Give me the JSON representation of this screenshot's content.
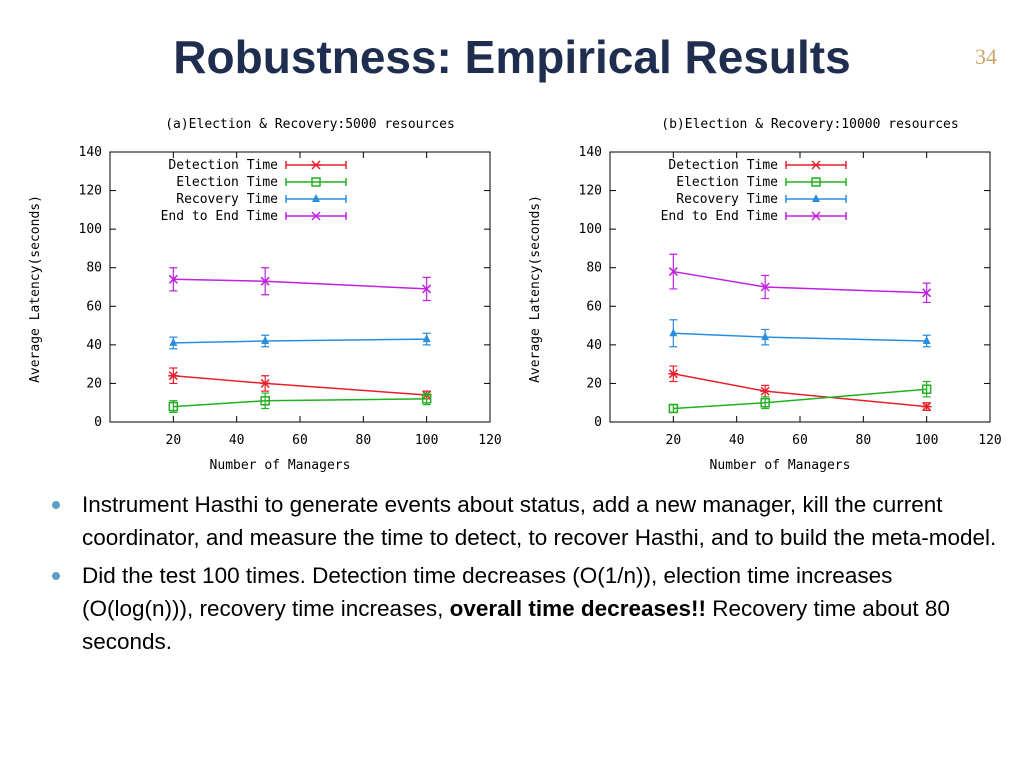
{
  "slide": {
    "title": "Robustness: Empirical Results",
    "number": "34"
  },
  "bullets": [
    {
      "text": "Instrument Hasthi to generate events about status, add a new manager, kill the current coordinator, and measure the time to detect, to recover Hasthi, and to build the meta-model."
    },
    {
      "text": "Did the test 100 times. Detection time decreases (O(1/n)), election time increases (O(log(n))), recovery time increases,",
      "bold": "overall time decreases!!",
      "tail": "Recovery time about 80 seconds."
    }
  ],
  "chart_data": [
    {
      "type": "line",
      "title": "(a)Election & Recovery:5000 resources",
      "xlabel": "Number of Managers",
      "ylabel": "Average Latency(seconds)",
      "xlim": [
        0,
        120
      ],
      "ylim": [
        0,
        140
      ],
      "xticks": [
        "20",
        "40",
        "60",
        "80",
        "100",
        "120"
      ],
      "yticks": [
        "0",
        "20",
        "40",
        "60",
        "80",
        "100",
        "120",
        "140"
      ],
      "grid": false,
      "legend": "top-left",
      "x": [
        20,
        49,
        100
      ],
      "series": [
        {
          "name": "Detection Time",
          "color": "#e8202a",
          "marker": "asterisk",
          "values": [
            24,
            20,
            14
          ],
          "errors": [
            4,
            4,
            2
          ]
        },
        {
          "name": "Election Time",
          "color": "#22b022",
          "marker": "square",
          "values": [
            8,
            11,
            12
          ],
          "errors": [
            3,
            4,
            3
          ]
        },
        {
          "name": "Recovery Time",
          "color": "#2a8ee0",
          "marker": "triangle",
          "values": [
            41,
            42,
            43
          ],
          "errors": [
            3,
            3,
            3
          ]
        },
        {
          "name": "End to End Time",
          "color": "#c020e0",
          "marker": "cross",
          "values": [
            74,
            73,
            69
          ],
          "errors": [
            6,
            7,
            6
          ]
        }
      ]
    },
    {
      "type": "line",
      "title": "(b)Election & Recovery:10000 resources",
      "xlabel": "Number of Managers",
      "ylabel": "Average Latency(seconds)",
      "xlim": [
        0,
        120
      ],
      "ylim": [
        0,
        140
      ],
      "xticks": [
        "20",
        "40",
        "60",
        "80",
        "100",
        "120"
      ],
      "yticks": [
        "0",
        "20",
        "40",
        "60",
        "80",
        "100",
        "120",
        "140"
      ],
      "grid": false,
      "legend": "top-left",
      "x": [
        20,
        49,
        100
      ],
      "series": [
        {
          "name": "Detection Time",
          "color": "#e8202a",
          "marker": "asterisk",
          "values": [
            25,
            16,
            8
          ],
          "errors": [
            4,
            3,
            2
          ]
        },
        {
          "name": "Election Time",
          "color": "#22b022",
          "marker": "square",
          "values": [
            7,
            10,
            17
          ],
          "errors": [
            2,
            3,
            4
          ]
        },
        {
          "name": "Recovery Time",
          "color": "#2a8ee0",
          "marker": "triangle",
          "values": [
            46,
            44,
            42
          ],
          "errors": [
            7,
            4,
            3
          ]
        },
        {
          "name": "End to End Time",
          "color": "#c020e0",
          "marker": "cross",
          "values": [
            78,
            70,
            67
          ],
          "errors": [
            9,
            6,
            5
          ]
        }
      ]
    }
  ]
}
